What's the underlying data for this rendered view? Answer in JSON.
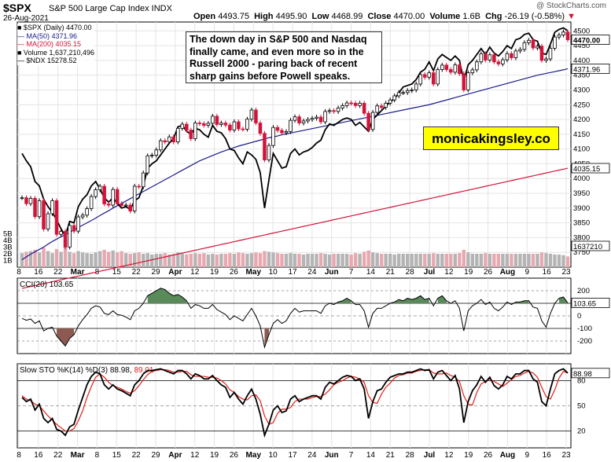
{
  "header": {
    "symbol": "$SPX",
    "name": "S&P 500 Large Cap Index  INDX",
    "date": "26-Aug-2021",
    "open_label": "Open",
    "open": "4493.75",
    "high_label": "High",
    "high": "4495.90",
    "low_label": "Low",
    "low": "4468.99",
    "close_label": "Close",
    "close": "4470.00",
    "volume_label": "Volume",
    "volume": "1.6B",
    "chg_label": "Chg",
    "chg": "-26.19 (-0.58%)",
    "credit": "@ StockCharts.com"
  },
  "legend": {
    "spx": "■ $SPX (Daily) 4470.00",
    "ma50": "— MA(50) 4371.96",
    "ma200": "— MA(200) 4035.15",
    "volume": "■ Volume 1,637,210,496",
    "ndx": "— $NDX 15278.52"
  },
  "annotation": "The down day in S&P 500 and Nasdaq finally came, and even more so in the Russell 2000 - paring back of recent sharp gains before Powell speaks.",
  "brand": "monicakingsley.co",
  "colors": {
    "up": "#ffffff",
    "down": "#d2143a",
    "ma50": "#1a1a8c",
    "ma200": "#d2143a",
    "cci_fill": "#5a8a5a",
    "cci_neg_fill": "#8c5a50",
    "sto_k": "#000000",
    "sto_d": "#e0201a",
    "vol_up": "#b4b4b4",
    "vol_down": "#e8a8b0"
  },
  "chart_data": [
    {
      "type": "candlestick",
      "title": "$SPX (Daily)",
      "ylim": [
        3700,
        4530
      ],
      "price_ticks": [
        "4500",
        "4450",
        "4400",
        "4350",
        "4300",
        "4250",
        "4200",
        "4150",
        "4100",
        "4050",
        "4000",
        "3950",
        "3900",
        "3850",
        "3800",
        "3750"
      ],
      "volume_ticks": [
        "5B",
        "4B",
        "3B",
        "2B",
        "1B"
      ],
      "x_labels": [
        "8",
        "16",
        "22",
        "Mar",
        "8",
        "15",
        "22",
        "29",
        "Apr",
        "12",
        "19",
        "26",
        "May",
        "10",
        "17",
        "24",
        "Jun",
        "7",
        "14",
        "21",
        "28",
        "Jul",
        "12",
        "19",
        "26",
        "Aug",
        "9",
        "16",
        "23"
      ],
      "value_labels": {
        "close": "4470.00",
        "ma50": "4371.96",
        "ma200": "4035.15",
        "volume": "1637210"
      },
      "close": [
        3935,
        3915,
        3933,
        3871,
        3925,
        3829,
        3881,
        3925,
        3811,
        3821,
        3768,
        3841,
        3822,
        3870,
        3876,
        3898,
        3939,
        3962,
        3974,
        3914,
        3910,
        3963,
        3915,
        3909,
        3910,
        3890,
        3974,
        3972,
        4019,
        4077,
        4079,
        4097,
        4128,
        4124,
        4141,
        4124,
        4170,
        4184,
        4164,
        4135,
        4188,
        4186,
        4180,
        4187,
        4211,
        4183,
        4188,
        4181,
        4164,
        4192,
        4168,
        4167,
        4201,
        4232,
        4188,
        4153,
        4063,
        4112,
        4173,
        4163,
        4155,
        4159,
        4197,
        4209,
        4188,
        4195,
        4200,
        4204,
        4208,
        4192,
        4227,
        4230,
        4227,
        4239,
        4247,
        4256,
        4255,
        4247,
        4255,
        4221,
        4166,
        4224,
        4246,
        4241,
        4255,
        4266,
        4280,
        4291,
        4291,
        4298,
        4300,
        4320,
        4352,
        4343,
        4358,
        4320,
        4369,
        4384,
        4369,
        4360,
        4385,
        4355,
        4300,
        4358,
        4368,
        4395,
        4422,
        4401,
        4419,
        4395,
        4388,
        4402,
        4423,
        4409,
        4432,
        4437,
        4460,
        4468,
        4442,
        4448,
        4400,
        4405,
        4441,
        4479,
        4486,
        4496,
        4470
      ],
      "ma50": [
        3725,
        3735,
        3744,
        3752,
        3760,
        3768,
        3778,
        3787,
        3795,
        3803,
        3810,
        3818,
        3826,
        3834,
        3842,
        3850,
        3858,
        3866,
        3875,
        3883,
        3891,
        3900,
        3908,
        3916,
        3924,
        3932,
        3940,
        3948,
        3956,
        3964,
        3972,
        3980,
        3988,
        3996,
        4004,
        4012,
        4020,
        4028,
        4036,
        4044,
        4052,
        4060,
        4066,
        4072,
        4078,
        4084,
        4090,
        4095,
        4100,
        4105,
        4110,
        4114,
        4118,
        4122,
        4126,
        4130,
        4134,
        4138,
        4141,
        4144,
        4148,
        4151,
        4154,
        4157,
        4160,
        4163,
        4166,
        4169,
        4172,
        4175,
        4178,
        4181,
        4184,
        4187,
        4190,
        4193,
        4196,
        4199,
        4202,
        4205,
        4208,
        4211,
        4214,
        4217,
        4220,
        4223,
        4226,
        4229,
        4232,
        4235,
        4238,
        4241,
        4244,
        4247,
        4250,
        4254,
        4258,
        4262,
        4266,
        4270,
        4274,
        4278,
        4282,
        4286,
        4290,
        4294,
        4298,
        4302,
        4306,
        4310,
        4314,
        4318,
        4322,
        4326,
        4330,
        4334,
        4338,
        4342,
        4346,
        4350,
        4353,
        4356,
        4359,
        4362,
        4365,
        4368,
        4372
      ],
      "ndx": [
        4085,
        4060,
        4040,
        3990,
        3975,
        3930,
        3905,
        3885,
        3860,
        3830,
        3805,
        3855,
        3850,
        3905,
        3930,
        3945,
        3975,
        3990,
        3965,
        3935,
        3920,
        3935,
        3915,
        3900,
        3905,
        3895,
        3925,
        3935,
        3975,
        4035,
        4050,
        4060,
        4080,
        4100,
        4120,
        4135,
        4175,
        4180,
        4160,
        4150,
        4170,
        4165,
        4150,
        4140,
        4180,
        4160,
        4155,
        4135,
        4100,
        4095,
        4070,
        4050,
        4090,
        4080,
        4065,
        4020,
        3900,
        3995,
        4085,
        4060,
        4035,
        4040,
        4085,
        4100,
        4080,
        4090,
        4095,
        4105,
        4120,
        4130,
        4165,
        4185,
        4180,
        4190,
        4200,
        4205,
        4200,
        4180,
        4190,
        4175,
        4160,
        4200,
        4215,
        4230,
        4245,
        4260,
        4270,
        4290,
        4310,
        4315,
        4320,
        4335,
        4360,
        4370,
        4395,
        4365,
        4405,
        4420,
        4410,
        4400,
        4415,
        4400,
        4330,
        4385,
        4400,
        4420,
        4440,
        4420,
        4445,
        4425,
        4415,
        4430,
        4450,
        4440,
        4470,
        4475,
        4488,
        4492,
        4470,
        4465,
        4425,
        4420,
        4455,
        4495,
        4505,
        4510,
        4500
      ],
      "ma200_start": 3628,
      "ma200_end": 4035,
      "volume_billion": [
        2.1,
        2.3,
        2.4,
        2.6,
        2.2,
        2.9,
        2.4,
        2.1,
        2.7,
        2.3,
        3.1,
        2.3,
        2.1,
        2.4,
        2.2,
        2.1,
        2.0,
        2.2,
        2.4,
        2.6,
        2.3,
        2.5,
        2.2,
        2.4,
        2.1,
        2.0,
        2.1,
        2.2,
        2.0,
        2.1,
        1.9,
        2.0,
        2.0,
        2.1,
        1.9,
        2.0,
        2.2,
        2.0,
        1.9,
        2.0,
        2.1,
        2.0,
        2.1,
        1.9,
        2.0,
        1.9,
        2.0,
        2.0,
        2.1,
        2.0,
        2.2,
        2.1,
        2.0,
        2.1,
        2.2,
        2.1,
        2.4,
        2.3,
        2.2,
        2.1,
        2.0,
        2.0,
        2.1,
        2.0,
        2.0,
        1.9,
        2.0,
        2.0,
        2.0,
        2.1,
        2.0,
        1.9,
        2.0,
        2.0,
        2.0,
        2.0,
        1.9,
        2.1,
        2.0,
        2.3,
        2.5,
        2.2,
        2.1,
        2.0,
        2.0,
        2.0,
        1.9,
        2.0,
        2.0,
        2.0,
        2.0,
        2.0,
        2.0,
        2.0,
        2.0,
        2.1,
        2.0,
        2.0,
        2.0,
        2.0,
        2.0,
        2.1,
        2.6,
        2.2,
        2.0,
        2.0,
        2.0,
        2.1,
        2.0,
        2.0,
        2.0,
        2.0,
        2.0,
        2.0,
        2.0,
        2.0,
        2.0,
        2.0,
        2.0,
        2.0,
        2.2,
        2.1,
        2.0,
        1.9,
        1.9,
        1.8,
        1.6
      ]
    },
    {
      "type": "line",
      "title": "CCI(20) 103.65",
      "ylim": [
        -300,
        300
      ],
      "y_ticks": [
        "200",
        "100",
        "0",
        "-100",
        "-200"
      ],
      "value_label": "103.65",
      "values": [
        -20,
        -35,
        -25,
        -60,
        -40,
        -120,
        -100,
        -90,
        -160,
        -200,
        -240,
        -180,
        -150,
        -80,
        -30,
        10,
        60,
        80,
        70,
        20,
        10,
        40,
        10,
        5,
        -10,
        -30,
        40,
        60,
        100,
        160,
        180,
        200,
        220,
        210,
        180,
        160,
        170,
        150,
        120,
        60,
        90,
        80,
        60,
        60,
        90,
        50,
        30,
        10,
        -30,
        0,
        -20,
        -40,
        10,
        60,
        0,
        -80,
        -250,
        -150,
        -60,
        -30,
        -60,
        -40,
        20,
        60,
        30,
        40,
        40,
        40,
        40,
        20,
        80,
        100,
        90,
        110,
        120,
        140,
        120,
        90,
        90,
        40,
        -90,
        20,
        60,
        60,
        80,
        100,
        110,
        130,
        120,
        140,
        130,
        140,
        160,
        130,
        140,
        80,
        140,
        160,
        120,
        100,
        120,
        60,
        -120,
        40,
        80,
        100,
        130,
        90,
        110,
        60,
        40,
        70,
        110,
        90,
        110,
        110,
        120,
        120,
        70,
        60,
        -40,
        -90,
        20,
        100,
        140,
        150,
        103
      ]
    },
    {
      "type": "line",
      "title": "Slow STO %K(14) %D(3) 88.98, 89.01",
      "ylim": [
        0,
        100
      ],
      "y_ticks": [
        "80",
        "50",
        "20"
      ],
      "value_label": "88.98",
      "series": [
        {
          "name": "%K",
          "values": [
            60,
            55,
            58,
            45,
            52,
            35,
            30,
            35,
            22,
            20,
            15,
            25,
            28,
            45,
            60,
            75,
            85,
            90,
            88,
            75,
            70,
            75,
            70,
            68,
            65,
            62,
            75,
            80,
            88,
            92,
            92,
            93,
            94,
            92,
            90,
            88,
            92,
            92,
            88,
            82,
            88,
            86,
            82,
            82,
            86,
            80,
            75,
            72,
            60,
            66,
            58,
            52,
            62,
            70,
            58,
            40,
            15,
            28,
            45,
            50,
            42,
            44,
            58,
            62,
            55,
            58,
            60,
            62,
            62,
            58,
            72,
            78,
            76,
            80,
            84,
            86,
            85,
            80,
            82,
            70,
            35,
            55,
            68,
            70,
            78,
            84,
            86,
            88,
            88,
            90,
            90,
            92,
            94,
            92,
            93,
            82,
            90,
            92,
            86,
            80,
            86,
            70,
            30,
            55,
            68,
            75,
            85,
            78,
            84,
            74,
            70,
            75,
            85,
            82,
            88,
            88,
            92,
            92,
            82,
            78,
            55,
            50,
            70,
            88,
            92,
            94,
            89
          ]
        },
        {
          "name": "%D",
          "values": [
            62,
            58,
            56,
            52,
            50,
            44,
            38,
            33,
            28,
            24,
            20,
            20,
            23,
            32,
            44,
            60,
            73,
            84,
            88,
            84,
            78,
            74,
            72,
            70,
            67,
            65,
            68,
            74,
            81,
            87,
            91,
            92,
            93,
            93,
            92,
            90,
            90,
            91,
            91,
            87,
            85,
            85,
            85,
            84,
            84,
            83,
            80,
            76,
            69,
            66,
            61,
            58,
            57,
            62,
            63,
            56,
            38,
            28,
            30,
            41,
            46,
            46,
            48,
            55,
            58,
            58,
            58,
            60,
            61,
            61,
            64,
            69,
            75,
            78,
            80,
            83,
            85,
            84,
            82,
            78,
            62,
            54,
            53,
            64,
            72,
            77,
            83,
            86,
            87,
            89,
            89,
            91,
            92,
            93,
            93,
            89,
            88,
            88,
            89,
            86,
            84,
            79,
            62,
            52,
            51,
            66,
            76,
            79,
            82,
            79,
            76,
            73,
            77,
            81,
            85,
            86,
            89,
            91,
            89,
            84,
            72,
            61,
            58,
            69,
            83,
            91,
            89
          ]
        }
      ]
    }
  ]
}
